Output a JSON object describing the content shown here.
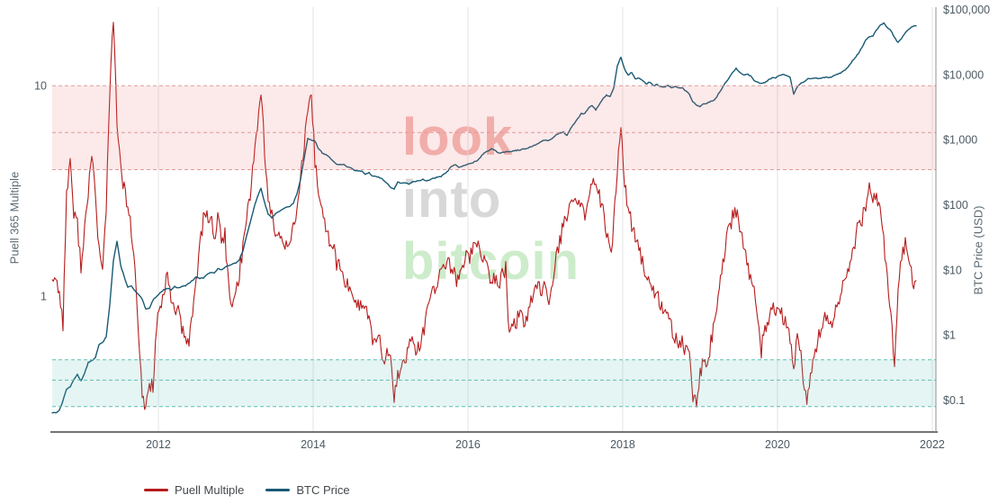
{
  "chart_data": {
    "type": "line",
    "title": "",
    "x_axis": {
      "ticks": [
        2012,
        2014,
        2016,
        2018,
        2020,
        2022
      ],
      "range": [
        2010.628,
        2022.047
      ]
    },
    "left_axis": {
      "label": "Puell 365 Multiple",
      "scale": "log",
      "range": [
        0.227,
        23.62
      ],
      "ticks": [
        {
          "value": 1,
          "label": "1"
        },
        {
          "value": 10,
          "label": "10"
        }
      ]
    },
    "right_axis": {
      "label": "BTC Price (USD)",
      "scale": "log",
      "range": [
        0.0327,
        110100
      ],
      "ticks": [
        {
          "value": 0.1,
          "label": "$0.1"
        },
        {
          "value": 1,
          "label": "$1"
        },
        {
          "value": 10,
          "label": "$10"
        },
        {
          "value": 100,
          "label": "$100"
        },
        {
          "value": 1000,
          "label": "$1,000"
        },
        {
          "value": 10000,
          "label": "$10,000"
        },
        {
          "value": 100000,
          "label": "$100,000"
        }
      ]
    },
    "bands": [
      {
        "name": "sell-zone",
        "axis": "left",
        "from": 4,
        "mid": 6,
        "to": 10,
        "fill": "rgba(235,110,110,0.15)",
        "line": "#e09a9a"
      },
      {
        "name": "buy-zone",
        "axis": "left",
        "from": 0.3,
        "mid": 0.4,
        "to": 0.5,
        "fill": "rgba(80,190,175,0.15)",
        "line": "#5fc0b1"
      }
    ],
    "colors": {
      "grid": "#e4e4e4",
      "axis": "#474747",
      "spine": "#8c9196",
      "tick": "#4c5a62"
    },
    "watermark": {
      "lines": [
        "look",
        "into",
        "bitcoin"
      ],
      "colors": [
        "#f2b9b4",
        "#d8d8d8",
        "#cdeccb"
      ]
    },
    "series": [
      {
        "name": "Puell Multiple",
        "axis": "left",
        "color": "#b61b1b",
        "width": 1.1,
        "noise": 0.09,
        "seed": 77,
        "x_start": 2010.628,
        "x_step": 0.046512,
        "values": [
          1.25,
          1.2,
          1.05,
          0.75,
          3.0,
          4.6,
          2.4,
          2.2,
          1.4,
          2.1,
          2.9,
          5.0,
          3.0,
          1.65,
          1.3,
          2.7,
          9.5,
          20.5,
          7.0,
          4.0,
          3.2,
          2.7,
          2.0,
          1.3,
          0.65,
          0.33,
          0.3,
          0.38,
          0.38,
          0.72,
          0.9,
          0.95,
          1.3,
          0.95,
          0.9,
          0.85,
          0.7,
          0.6,
          0.62,
          0.85,
          1.2,
          1.7,
          2.3,
          2.4,
          2.45,
          1.9,
          2.3,
          1.9,
          1.95,
          1.1,
          0.85,
          1.05,
          1.3,
          1.7,
          2.4,
          3.1,
          4.6,
          6.3,
          9.8,
          5.0,
          2.8,
          2.4,
          2.0,
          1.9,
          1.85,
          1.8,
          1.9,
          2.1,
          2.6,
          3.6,
          5.2,
          7.2,
          8.8,
          4.4,
          3.2,
          2.5,
          2.05,
          1.85,
          1.75,
          1.45,
          1.35,
          1.2,
          1.12,
          1.1,
          0.98,
          0.92,
          0.9,
          0.88,
          0.8,
          0.62,
          0.6,
          0.6,
          0.52,
          0.52,
          0.5,
          0.33,
          0.42,
          0.45,
          0.52,
          0.55,
          0.67,
          0.55,
          0.57,
          0.66,
          0.8,
          0.95,
          1.1,
          1.15,
          1.35,
          1.4,
          1.42,
          1.35,
          1.22,
          1.2,
          1.4,
          1.58,
          1.55,
          1.72,
          1.78,
          1.7,
          1.45,
          1.3,
          1.2,
          1.22,
          1.15,
          1.25,
          1.35,
          0.65,
          0.73,
          0.75,
          0.85,
          0.78,
          0.78,
          0.92,
          1.05,
          1.08,
          1.1,
          1.12,
          1.0,
          1.2,
          1.5,
          1.8,
          2.2,
          2.2,
          2.8,
          2.9,
          2.8,
          2.9,
          2.4,
          2.9,
          3.4,
          3.2,
          3.1,
          2.5,
          2.0,
          1.55,
          2.2,
          3.8,
          6.6,
          3.4,
          2.7,
          2.2,
          1.9,
          1.65,
          1.42,
          1.3,
          1.15,
          1.05,
          1.02,
          0.9,
          0.82,
          0.8,
          0.72,
          0.65,
          0.6,
          0.6,
          0.55,
          0.5,
          0.33,
          0.31,
          0.42,
          0.5,
          0.5,
          0.6,
          0.78,
          1.0,
          1.3,
          1.7,
          2.1,
          2.35,
          2.5,
          2.1,
          1.75,
          1.45,
          1.25,
          1.05,
          0.75,
          0.55,
          0.72,
          0.75,
          0.85,
          0.88,
          0.9,
          0.8,
          0.72,
          0.62,
          0.46,
          0.62,
          0.55,
          0.33,
          0.33,
          0.45,
          0.55,
          0.65,
          0.75,
          0.78,
          0.72,
          0.78,
          0.88,
          1.0,
          1.15,
          1.3,
          1.5,
          1.8,
          2.2,
          2.3,
          2.7,
          3.3,
          2.9,
          3.0,
          2.8,
          1.8,
          1.2,
          0.8,
          0.5,
          1.1,
          1.5,
          1.85,
          1.6,
          1.15,
          1.1
        ]
      },
      {
        "name": "BTC Price",
        "axis": "right",
        "color": "#185a74",
        "width": 1.4,
        "noise": 0.016,
        "seed": 13,
        "x_start": 2010.628,
        "x_step": 0.046512,
        "values": [
          0.065,
          0.065,
          0.07,
          0.1,
          0.15,
          0.16,
          0.21,
          0.25,
          0.2,
          0.26,
          0.38,
          0.41,
          0.45,
          0.72,
          0.77,
          0.95,
          3.0,
          14,
          28,
          12,
          8.0,
          5.5,
          5.7,
          4.8,
          4.2,
          3.6,
          2.5,
          2.6,
          3.5,
          4.0,
          4.5,
          5.0,
          5.3,
          5.0,
          5.6,
          5.4,
          5.6,
          5.8,
          6.3,
          7.0,
          7.8,
          7.5,
          7.6,
          8.7,
          9.3,
          9.0,
          10.5,
          10.2,
          11.0,
          11.8,
          12.5,
          13.0,
          14.6,
          20,
          34,
          53,
          88,
          135,
          180,
          110,
          73,
          64,
          73,
          80,
          88,
          93,
          95,
          107,
          150,
          250,
          520,
          1050,
          1000,
          970,
          740,
          640,
          600,
          540,
          480,
          430,
          420,
          420,
          390,
          370,
          340,
          340,
          330,
          300,
          315,
          280,
          278,
          265,
          245,
          215,
          190,
          175,
          230,
          215,
          220,
          212,
          225,
          232,
          237,
          250,
          238,
          248,
          258,
          268,
          275,
          305,
          340,
          400,
          420,
          380,
          400,
          415,
          435,
          455,
          480,
          545,
          640,
          680,
          730,
          690,
          635,
          645,
          655,
          665,
          678,
          695,
          710,
          725,
          745,
          790,
          825,
          890,
          960,
          1005,
          985,
          1075,
          1200,
          1290,
          1330,
          1180,
          1520,
          1800,
          2150,
          2550,
          2570,
          3130,
          3350,
          2900,
          3570,
          4350,
          4930,
          4620,
          6300,
          13800,
          19000,
          12400,
          10000,
          11000,
          8600,
          9100,
          8200,
          7300,
          7800,
          6800,
          7100,
          6700,
          6500,
          6900,
          6400,
          6600,
          6300,
          6400,
          5700,
          5100,
          3900,
          3400,
          3300,
          3600,
          3700,
          3950,
          4100,
          5000,
          6100,
          7600,
          8900,
          10800,
          12600,
          11100,
          10000,
          10400,
          9700,
          8300,
          7800,
          7400,
          7700,
          8400,
          9100,
          9100,
          9900,
          10300,
          9700,
          9200,
          5100,
          6600,
          7400,
          8000,
          8700,
          8800,
          9000,
          8900,
          9100,
          9300,
          9200,
          9600,
          10200,
          10700,
          11600,
          13100,
          15600,
          18400,
          21500,
          26500,
          34500,
          38500,
          39500,
          49000,
          57500,
          62500,
          53500,
          48500,
          37500,
          31500,
          36500,
          44500,
          50500,
          55500,
          57500
        ]
      }
    ]
  }
}
